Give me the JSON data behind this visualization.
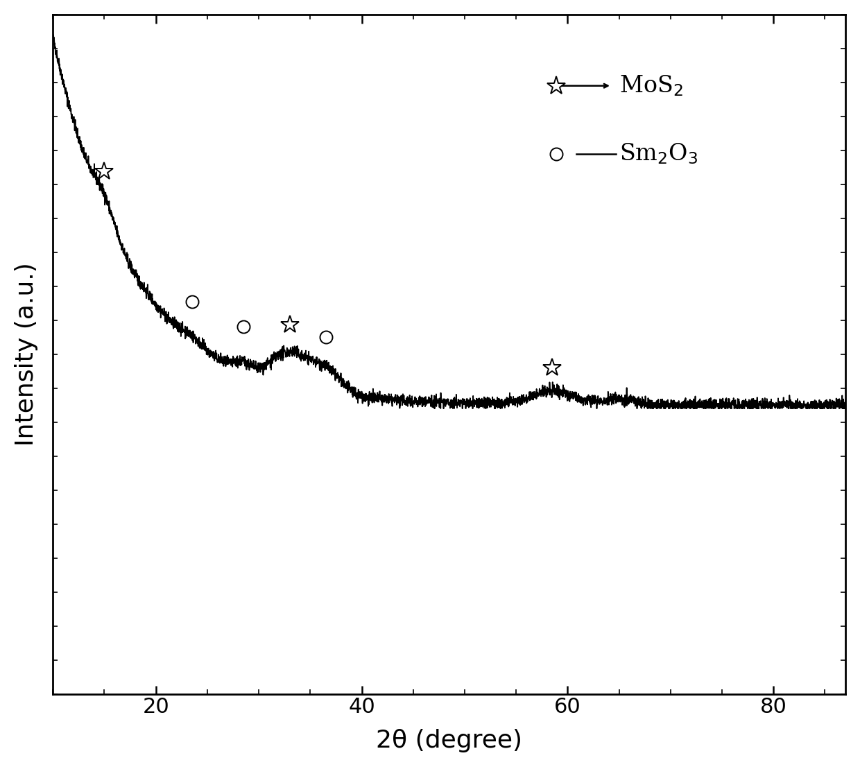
{
  "x_min": 10,
  "x_max": 87,
  "y_min": 0,
  "y_max": 1.0,
  "xlabel": "2θ (degree)",
  "ylabel": "Intensity (a.u.)",
  "xlabel_fontsize": 26,
  "ylabel_fontsize": 26,
  "tick_fontsize": 22,
  "background_color": "#ffffff",
  "line_color": "#000000",
  "mos2_peaks": [
    15.0,
    33.0,
    58.5
  ],
  "sm2o3_peaks": [
    23.5,
    28.5,
    36.5
  ],
  "curve_y_scale": 0.55,
  "curve_baseline": 0.42,
  "noise_amplitude": 0.004
}
